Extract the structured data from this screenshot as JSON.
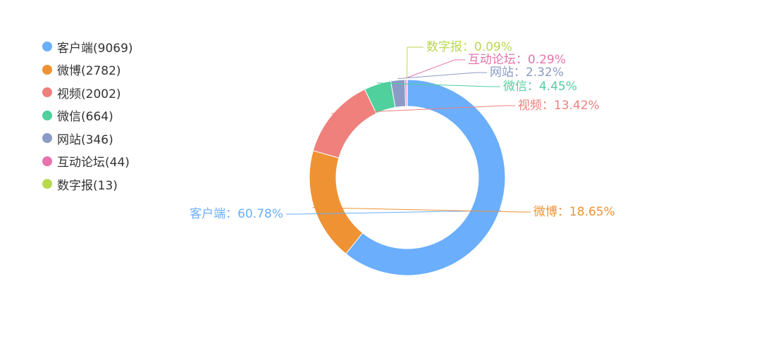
{
  "chart_data": {
    "type": "pie",
    "variant": "donut",
    "title": "",
    "legend_position": "top-left",
    "categories": [
      "客户端",
      "微博",
      "视频",
      "微信",
      "网站",
      "互动论坛",
      "数字报"
    ],
    "values": [
      9069,
      2782,
      2002,
      664,
      346,
      44,
      13
    ],
    "percent_labels": [
      "60.78%",
      "18.65%",
      "13.42%",
      "4.45%",
      "2.32%",
      "0.29%",
      "0.09%"
    ],
    "legend_labels": [
      "客户端(9069)",
      "微博(2782)",
      "视频(2002)",
      "微信(664)",
      "网站(346)",
      "互动论坛(44)",
      "数字报(13)"
    ],
    "slice_labels": [
      "客户端：60.78%",
      "微博：18.65%",
      "视频：13.42%",
      "微信：4.45%",
      "网站：2.32%",
      "互动论坛：0.29%",
      "数字报：0.09%"
    ],
    "colors": [
      "#6aaefc",
      "#ee9234",
      "#ef807c",
      "#4fd09d",
      "#8a9bc6",
      "#e673ad",
      "#b9d84f"
    ]
  }
}
